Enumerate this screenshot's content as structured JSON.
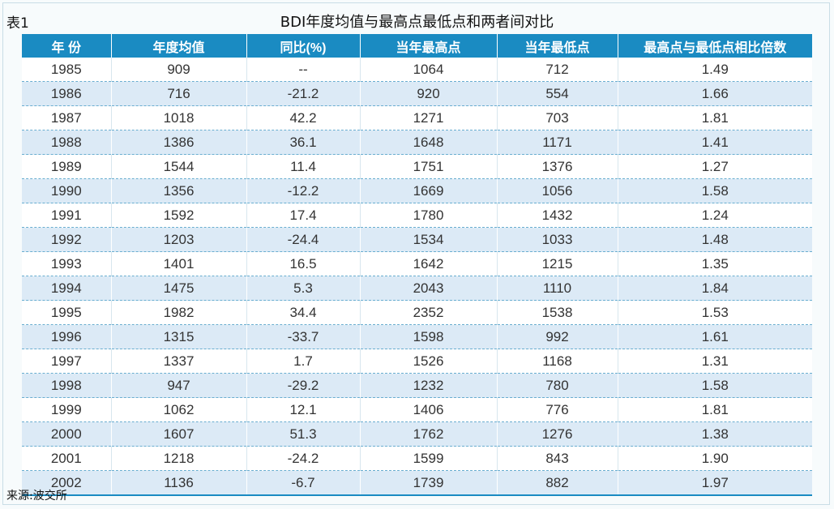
{
  "caption": {
    "label": "表1",
    "title": "BDI年度均值与最高点最低点和两者间对比"
  },
  "headers": [
    "年 份",
    "年度均值",
    "同比(%)",
    "当年最高点",
    "当年最低点",
    "最高点与最低点相比倍数"
  ],
  "rows": [
    [
      "1985",
      "909",
      "--",
      "1064",
      "712",
      "1.49"
    ],
    [
      "1986",
      "716",
      "-21.2",
      "920",
      "554",
      "1.66"
    ],
    [
      "1987",
      "1018",
      "42.2",
      "1271",
      "703",
      "1.81"
    ],
    [
      "1988",
      "1386",
      "36.1",
      "1648",
      "1171",
      "1.41"
    ],
    [
      "1989",
      "1544",
      "11.4",
      "1751",
      "1376",
      "1.27"
    ],
    [
      "1990",
      "1356",
      "-12.2",
      "1669",
      "1056",
      "1.58"
    ],
    [
      "1991",
      "1592",
      "17.4",
      "1780",
      "1432",
      "1.24"
    ],
    [
      "1992",
      "1203",
      "-24.4",
      "1534",
      "1033",
      "1.48"
    ],
    [
      "1993",
      "1401",
      "16.5",
      "1642",
      "1215",
      "1.35"
    ],
    [
      "1994",
      "1475",
      "5.3",
      "2043",
      "1110",
      "1.84"
    ],
    [
      "1995",
      "1982",
      "34.4",
      "2352",
      "1538",
      "1.53"
    ],
    [
      "1996",
      "1315",
      "-33.7",
      "1598",
      "992",
      "1.61"
    ],
    [
      "1997",
      "1337",
      "1.7",
      "1526",
      "1168",
      "1.31"
    ],
    [
      "1998",
      "947",
      "-29.2",
      "1232",
      "780",
      "1.58"
    ],
    [
      "1999",
      "1062",
      "12.1",
      "1406",
      "776",
      "1.81"
    ],
    [
      "2000",
      "1607",
      "51.3",
      "1762",
      "1276",
      "1.38"
    ],
    [
      "2001",
      "1218",
      "-24.2",
      "1599",
      "843",
      "1.90"
    ],
    [
      "2002",
      "1136",
      "-6.7",
      "1739",
      "882",
      "1.97"
    ]
  ],
  "source": "来源:波交所"
}
